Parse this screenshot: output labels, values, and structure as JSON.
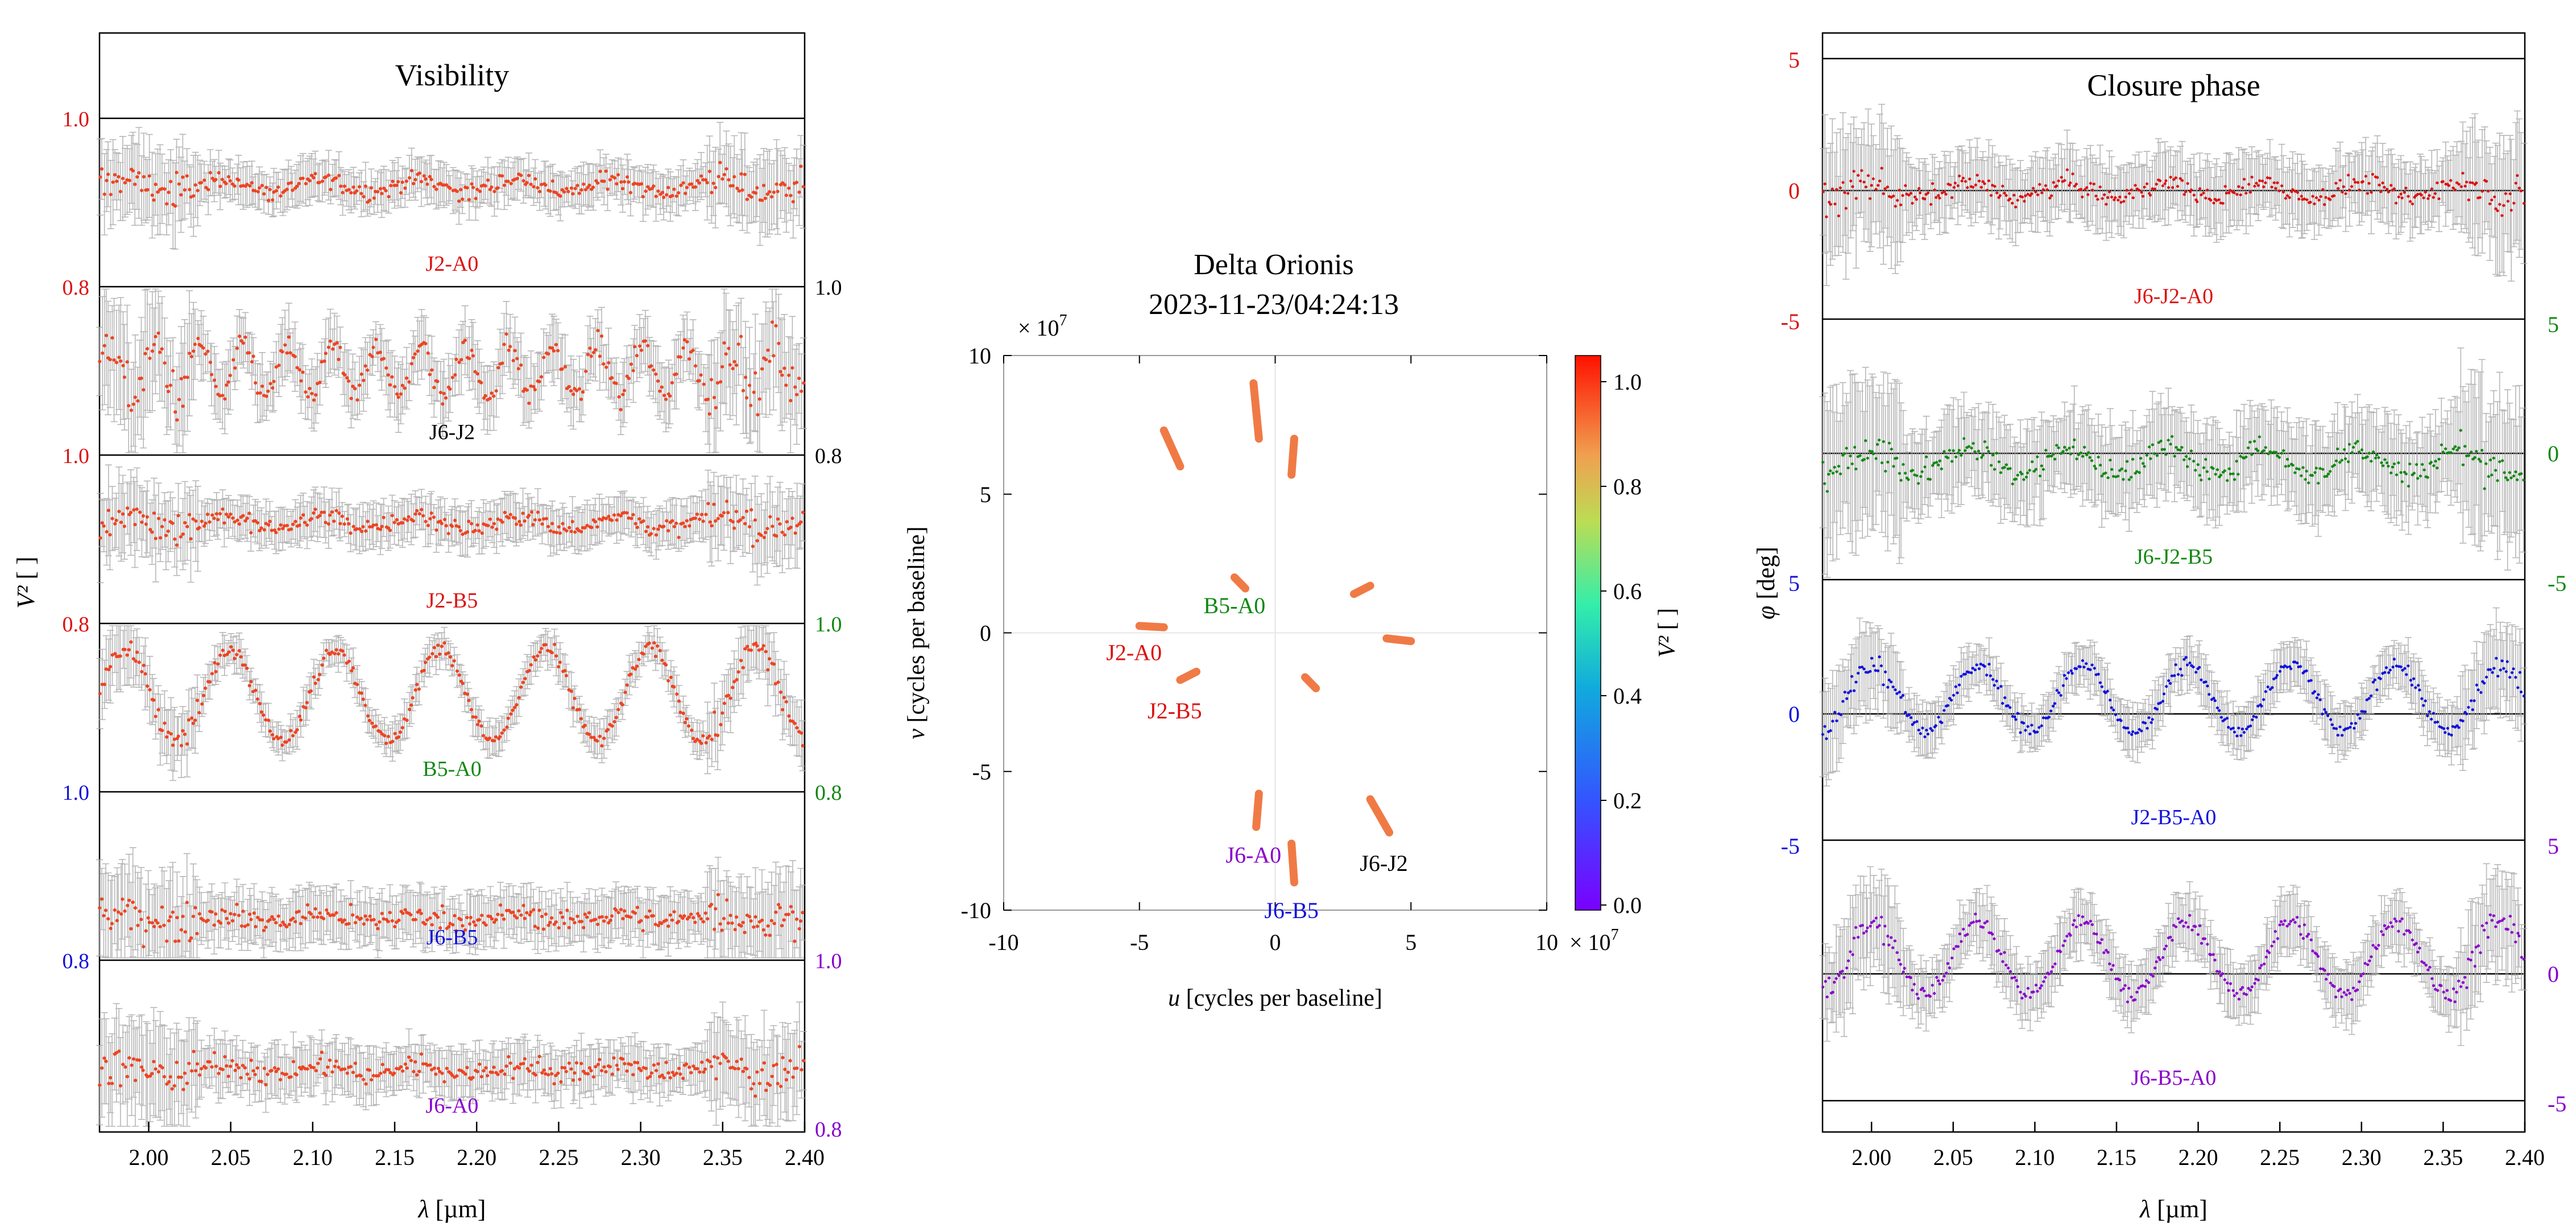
{
  "colors": {
    "red": "#dd1111",
    "green": "#118811",
    "blue": "#1111dd",
    "purple": "#8800cc",
    "black": "#000000",
    "dot": "#ee4422",
    "err": "#aaaaaa",
    "uv": "#f07a45"
  },
  "chart_data": [
    {
      "type": "line",
      "title": "Visibility",
      "xlabel": "λ [µm]",
      "ylabel": "V² [ ]",
      "xlim": [
        1.97,
        2.4
      ],
      "xticks": [
        "2.00",
        "2.05",
        "2.10",
        "2.15",
        "2.20",
        "2.25",
        "2.30",
        "2.35",
        "2.40"
      ],
      "series": [
        {
          "name": "J2-A0",
          "color": "red",
          "level": 0.92,
          "amp": 0.008,
          "period": 0.06,
          "noise": 0.025,
          "ytick_hi": "1.0",
          "ytick_lo": "0.8",
          "side": "left"
        },
        {
          "name": "J6-J2",
          "color": "black",
          "level": 0.9,
          "amp": 0.03,
          "period": 0.027,
          "noise": 0.035,
          "ytick_hi": "1.0",
          "ytick_lo": "0.8",
          "side": "right"
        },
        {
          "name": "J2-B5",
          "color": "red",
          "level": 0.92,
          "amp": 0.008,
          "period": 0.06,
          "noise": 0.025,
          "ytick_hi": "1.0",
          "ytick_lo": "0.8",
          "side": "left"
        },
        {
          "name": "B5-A0",
          "color": "green",
          "level": 0.915,
          "amp": 0.055,
          "period": 0.064,
          "noise": 0.02,
          "ytick_hi": "1.0",
          "ytick_lo": "0.8",
          "side": "right"
        },
        {
          "name": "J6-B5",
          "color": "blue",
          "level": 0.85,
          "amp": 0.005,
          "period": 0.06,
          "noise": 0.03,
          "ytick_hi": "1.0",
          "ytick_lo": "0.8",
          "side": "left"
        },
        {
          "name": "J6-A0",
          "color": "purple",
          "level": 0.87,
          "amp": 0.005,
          "period": 0.06,
          "noise": 0.03,
          "ytick_hi": "1.0",
          "ytick_lo": "0.8",
          "side": "right"
        }
      ]
    },
    {
      "type": "scatter",
      "title": "Delta Orionis",
      "subtitle": "2023-11-23/04:24:13",
      "xlabel": "u [cycles per baseline]",
      "ylabel": "v [cycles per baseline]",
      "scale_label": "× 10",
      "scale_exp": "7",
      "xlim": [
        -10,
        10
      ],
      "ylim": [
        -10,
        10
      ],
      "ticks": [
        "-10",
        "-5",
        "0",
        "5",
        "10"
      ],
      "colorbar_label": "V² [ ]",
      "colorbar_ticks": [
        "0.0",
        "0.2",
        "0.4",
        "0.6",
        "0.8",
        "1.0"
      ],
      "tracks": [
        {
          "x1": -4.1,
          "y1": 7.3,
          "x2": -3.5,
          "y2": 6.0
        },
        {
          "x1": -0.8,
          "y1": 9.0,
          "x2": -0.6,
          "y2": 7.0
        },
        {
          "x1": 0.7,
          "y1": 7.0,
          "x2": 0.6,
          "y2": 5.7
        },
        {
          "x1": -1.5,
          "y1": 2.0,
          "x2": -1.1,
          "y2": 1.6
        },
        {
          "x1": 2.9,
          "y1": 1.4,
          "x2": 3.5,
          "y2": 1.7
        },
        {
          "x1": 4.1,
          "y1": -0.2,
          "x2": 5.0,
          "y2": -0.3
        },
        {
          "x1": -5.0,
          "y1": 0.25,
          "x2": -4.1,
          "y2": 0.2
        },
        {
          "x1": -3.5,
          "y1": -1.7,
          "x2": -2.9,
          "y2": -1.4
        },
        {
          "x1": 1.1,
          "y1": -1.6,
          "x2": 1.5,
          "y2": -2.0
        },
        {
          "x1": -0.6,
          "y1": -5.8,
          "x2": -0.7,
          "y2": -7.0
        },
        {
          "x1": 0.6,
          "y1": -7.6,
          "x2": 0.7,
          "y2": -9.0
        },
        {
          "x1": 3.5,
          "y1": -6.0,
          "x2": 4.2,
          "y2": -7.2
        }
      ],
      "labels": [
        {
          "text": "B5-A0",
          "color": "green",
          "u": -1.5,
          "v": 1.0
        },
        {
          "text": "J2-A0",
          "color": "red",
          "u": -5.2,
          "v": -0.7
        },
        {
          "text": "J2-B5",
          "color": "red",
          "u": -3.7,
          "v": -2.8
        },
        {
          "text": "J6-A0",
          "color": "purple",
          "u": -0.8,
          "v": -8.0
        },
        {
          "text": "J6-J2",
          "color": "black",
          "u": 4.0,
          "v": -8.3
        },
        {
          "text": "J6-B5",
          "color": "blue",
          "u": 0.6,
          "v": -10.0
        }
      ]
    },
    {
      "type": "line",
      "title": "Closure phase",
      "xlabel": "λ [µm]",
      "ylabel": "φ [deg]",
      "xlim": [
        1.97,
        2.4
      ],
      "xticks": [
        "2.00",
        "2.05",
        "2.10",
        "2.15",
        "2.20",
        "2.25",
        "2.30",
        "2.35",
        "2.40"
      ],
      "series": [
        {
          "name": "J6-J2-A0",
          "color": "red",
          "level": 0,
          "amp": 0.3,
          "period": 0.06,
          "noise": 0.7,
          "ytick_hi": "5",
          "ytick_mid": "0",
          "ytick_lo": "-5",
          "side": "left"
        },
        {
          "name": "J6-J2-B5",
          "color": "green",
          "level": -0.3,
          "amp": 0.5,
          "period": 0.06,
          "noise": 0.9,
          "ytick_hi": "5",
          "ytick_mid": "0",
          "ytick_lo": "-5",
          "side": "right"
        },
        {
          "name": "J2-B5-A0",
          "color": "blue",
          "level": 0.6,
          "amp": 1.3,
          "period": 0.064,
          "noise": 0.5,
          "ytick_hi": "5",
          "ytick_mid": "0",
          "ytick_lo": "-5",
          "side": "left"
        },
        {
          "name": "J6-B5-A0",
          "color": "purple",
          "level": 0.6,
          "amp": 1.4,
          "period": 0.064,
          "noise": 0.6,
          "ytick_hi": "5",
          "ytick_mid": "0",
          "ytick_lo": "-5",
          "side": "right"
        }
      ]
    }
  ]
}
